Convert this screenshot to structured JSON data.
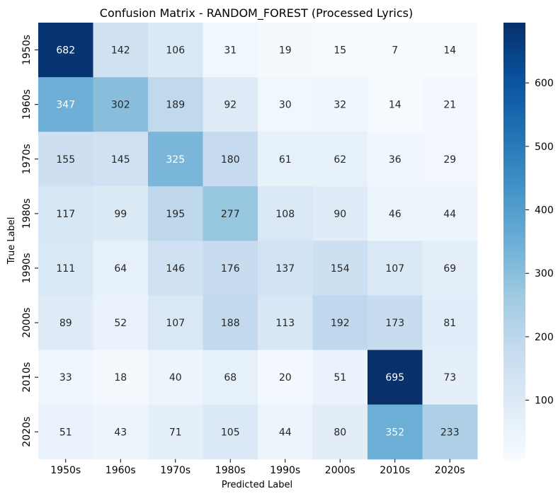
{
  "chart_data": {
    "type": "heatmap",
    "title": "Confusion Matrix - RANDOM_FOREST (Processed Lyrics)",
    "xlabel": "Predicted Label",
    "ylabel": "True Label",
    "x_categories": [
      "1950s",
      "1960s",
      "1970s",
      "1980s",
      "1990s",
      "2000s",
      "2010s",
      "2020s"
    ],
    "y_categories": [
      "1950s",
      "1960s",
      "1970s",
      "1980s",
      "1990s",
      "2000s",
      "2010s",
      "2020s"
    ],
    "values": [
      [
        682,
        142,
        106,
        31,
        19,
        15,
        7,
        14
      ],
      [
        347,
        302,
        189,
        92,
        30,
        32,
        14,
        21
      ],
      [
        155,
        145,
        325,
        180,
        61,
        62,
        36,
        29
      ],
      [
        117,
        99,
        195,
        277,
        108,
        90,
        46,
        44
      ],
      [
        111,
        64,
        146,
        176,
        137,
        154,
        107,
        69
      ],
      [
        89,
        52,
        107,
        188,
        113,
        192,
        173,
        81
      ],
      [
        33,
        18,
        40,
        68,
        20,
        51,
        695,
        73
      ],
      [
        51,
        43,
        71,
        105,
        44,
        80,
        352,
        233
      ]
    ],
    "colormap": "Blues",
    "vmin": 7,
    "vmax": 695,
    "colorbar_ticks": [
      100,
      200,
      300,
      400,
      500,
      600
    ]
  }
}
